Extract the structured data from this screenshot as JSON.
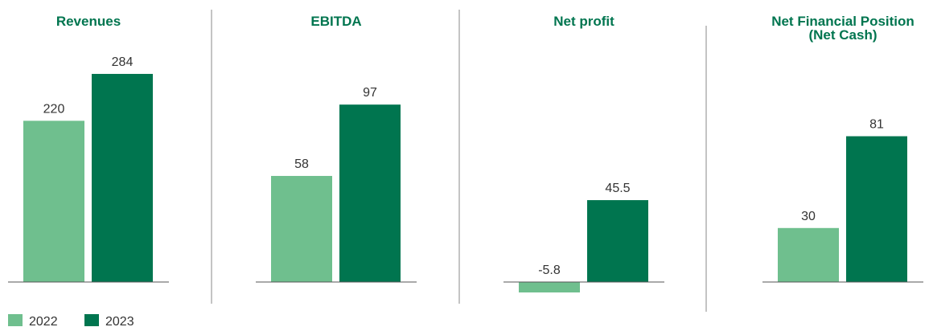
{
  "chart_data": [
    {
      "type": "bar",
      "title": [
        "Revenues"
      ],
      "ylim": [
        0,
        307
      ],
      "series": [
        {
          "name": "2022",
          "color": "#6fbf8e",
          "values": [
            220
          ]
        },
        {
          "name": "2023",
          "color": "#00754f",
          "values": [
            284
          ]
        }
      ]
    },
    {
      "type": "bar",
      "title": [
        "EBITDA"
      ],
      "ylim": [
        0,
        123
      ],
      "series": [
        {
          "name": "2022",
          "color": "#6fbf8e",
          "values": [
            58
          ]
        },
        {
          "name": "2023",
          "color": "#00754f",
          "values": [
            97
          ]
        }
      ]
    },
    {
      "type": "bar",
      "title": [
        "Net profit"
      ],
      "ylim": [
        -13,
        125
      ],
      "series": [
        {
          "name": "2022",
          "color": "#6fbf8e",
          "values": [
            -5.8
          ]
        },
        {
          "name": "2023",
          "color": "#00754f",
          "values": [
            45.5
          ]
        }
      ]
    },
    {
      "type": "bar",
      "title": [
        "Net Financial Position",
        "(Net Cash)"
      ],
      "ylim": [
        0,
        125
      ],
      "series": [
        {
          "name": "2022",
          "color": "#6fbf8e",
          "values": [
            30
          ]
        },
        {
          "name": "2023",
          "color": "#00754f",
          "values": [
            81
          ]
        }
      ]
    }
  ]
}
